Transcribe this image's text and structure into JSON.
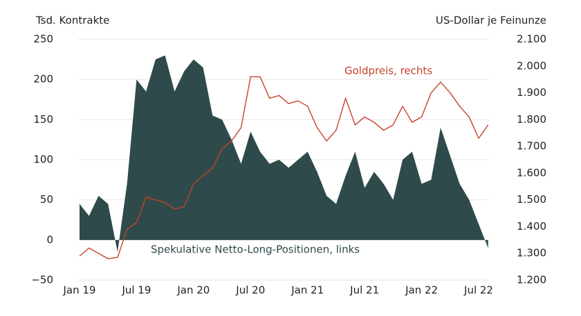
{
  "chart_data": {
    "type": "area-line",
    "ylabel": "Tsd. Kontrakte",
    "y2label": "US-Dollar je Feinunze",
    "x": [
      "2019-01",
      "2019-02",
      "2019-03",
      "2019-04",
      "2019-05",
      "2019-06",
      "2019-07",
      "2019-08",
      "2019-09",
      "2019-10",
      "2019-11",
      "2019-12",
      "2020-01",
      "2020-02",
      "2020-03",
      "2020-04",
      "2020-05",
      "2020-06",
      "2020-07",
      "2020-08",
      "2020-09",
      "2020-10",
      "2020-11",
      "2020-12",
      "2021-01",
      "2021-02",
      "2021-03",
      "2021-04",
      "2021-05",
      "2021-06",
      "2021-07",
      "2021-08",
      "2021-09",
      "2021-10",
      "2021-11",
      "2021-12",
      "2022-01",
      "2022-02",
      "2022-03",
      "2022-04",
      "2022-05",
      "2022-06",
      "2022-07",
      "2022-08"
    ],
    "series": [
      {
        "name": "Spekulative Netto-Long-Positionen, links",
        "color": "#2f4a4b",
        "kind": "area",
        "values": [
          45,
          30,
          55,
          45,
          -15,
          70,
          200,
          185,
          225,
          230,
          185,
          210,
          225,
          215,
          155,
          150,
          125,
          95,
          135,
          110,
          95,
          100,
          90,
          100,
          110,
          85,
          55,
          45,
          80,
          110,
          65,
          85,
          70,
          50,
          100,
          110,
          70,
          75,
          140,
          105,
          70,
          50,
          20,
          -10
        ]
      },
      {
        "name": "Goldpreis, rechts",
        "color": "#c4432b",
        "kind": "line",
        "axis": "y2",
        "values": [
          1290,
          1320,
          1300,
          1280,
          1285,
          1390,
          1415,
          1510,
          1500,
          1490,
          1465,
          1475,
          1560,
          1590,
          1620,
          1690,
          1720,
          1770,
          1960,
          1960,
          1880,
          1890,
          1860,
          1870,
          1850,
          1770,
          1720,
          1760,
          1880,
          1780,
          1810,
          1790,
          1760,
          1780,
          1850,
          1790,
          1810,
          1900,
          1940,
          1900,
          1850,
          1810,
          1730,
          1780
        ]
      }
    ],
    "ylim": [
      -50,
      250
    ],
    "yticks": [
      {
        "value": -50,
        "label": "−50"
      },
      0,
      50,
      100,
      150,
      200,
      250
    ],
    "y2lim": [
      1200,
      2100
    ],
    "y2ticks": [
      {
        "value": 1200,
        "label": "1.200"
      },
      {
        "value": 1300,
        "label": "1.300"
      },
      {
        "value": 1400,
        "label": "1.400"
      },
      {
        "value": 1500,
        "label": "1.500"
      },
      {
        "value": 1600,
        "label": "1.600"
      },
      {
        "value": 1700,
        "label": "1.700"
      },
      {
        "value": 1800,
        "label": "1.800"
      },
      {
        "value": 1900,
        "label": "1.900"
      },
      {
        "value": 2000,
        "label": "2.000"
      },
      {
        "value": 2100,
        "label": "2.100"
      }
    ],
    "xticks": [
      {
        "value": "2019-01",
        "label": "Jan 19"
      },
      {
        "value": "2019-07",
        "label": "Jul 19"
      },
      {
        "value": "2020-01",
        "label": "Jan 20"
      },
      {
        "value": "2020-07",
        "label": "Jul 20"
      },
      {
        "value": "2021-01",
        "label": "Jan 21"
      },
      {
        "value": "2021-07",
        "label": "Jul 21"
      },
      {
        "value": "2022-01",
        "label": "Jan 22"
      },
      {
        "value": "2022-07",
        "label": "Jul 22"
      }
    ],
    "grid": true
  }
}
